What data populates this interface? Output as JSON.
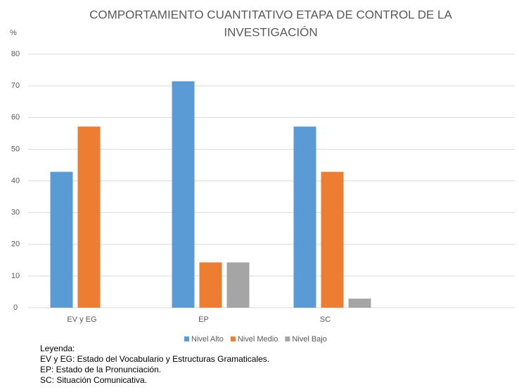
{
  "chart_data": {
    "type": "bar",
    "title": [
      "COMPORTAMIENTO CUANTITATIVO ETAPA DE CONTROL DE LA",
      "INVESTIGACIÓN"
    ],
    "y_label": "%",
    "categories": [
      "EV y EG",
      "EP",
      "SC",
      null
    ],
    "series": [
      {
        "name": "Nivel Alto",
        "color": "#5b9bd5",
        "values": [
          42.86,
          71.43,
          57.14,
          null
        ]
      },
      {
        "name": "Nivel Medio",
        "color": "#ed7d31",
        "values": [
          57.14,
          14.29,
          42.86,
          null
        ]
      },
      {
        "name": "Nivel Bajo",
        "color": "#a5a5a5",
        "values": [
          0,
          14.29,
          2.86,
          null
        ]
      }
    ],
    "ylim": [
      0,
      80
    ],
    "yticks": [
      0,
      10,
      20,
      30,
      40,
      50,
      60,
      70,
      80
    ],
    "grid": true,
    "legend": "bottom"
  },
  "notes": [
    "Leyenda:",
    "EV y EG: Estado del Vocabulario y Estructuras Gramaticales.",
    "EP: Estado de la Pronunciación.",
    "SC: Situación Comunicativa."
  ]
}
